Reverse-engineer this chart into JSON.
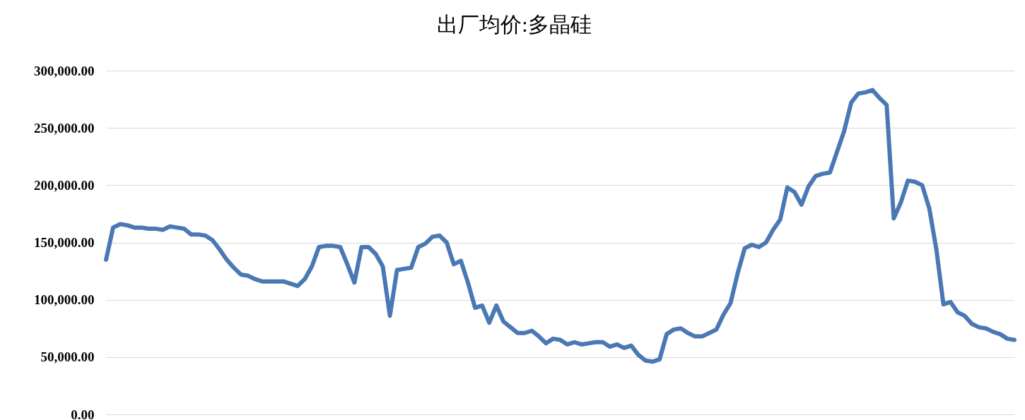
{
  "chart_data": {
    "type": "line",
    "title": "出厂均价:多晶硅",
    "categories": [
      null,
      null,
      null,
      null,
      null,
      null,
      null,
      null,
      null,
      null,
      null,
      null,
      null,
      null,
      null,
      null,
      null,
      null,
      null,
      null,
      null,
      null,
      null,
      null,
      null,
      null,
      null,
      null,
      null,
      null,
      null,
      null,
      null,
      null,
      null,
      null,
      null,
      null,
      null,
      null,
      null,
      null,
      null,
      null,
      null,
      null,
      null,
      null,
      null,
      null,
      null,
      null,
      null,
      null,
      null,
      null,
      null,
      null,
      null,
      null,
      null,
      null,
      null,
      null,
      null,
      null,
      null,
      null,
      null,
      null,
      null,
      null,
      null,
      null,
      null,
      null,
      null,
      null,
      null,
      null,
      null,
      null,
      null,
      null,
      null,
      null,
      null,
      null,
      null,
      null,
      null,
      null,
      null,
      null,
      null,
      null,
      null,
      null,
      null,
      null,
      null,
      null,
      null,
      null,
      null,
      null,
      null,
      null,
      null,
      null,
      null,
      null,
      null,
      null,
      null,
      null,
      null,
      null,
      null,
      null,
      null,
      null,
      null,
      null,
      null,
      null,
      null,
      null,
      null
    ],
    "series": [
      {
        "color": "#4a78b4",
        "values": [
          135000,
          163000,
          166000,
          165000,
          163000,
          163000,
          162000,
          162000,
          161000,
          164000,
          163000,
          162000,
          157000,
          157000,
          156000,
          152000,
          144000,
          135000,
          128000,
          122000,
          121000,
          118000,
          116000,
          116000,
          116000,
          116000,
          114000,
          112000,
          118000,
          129000,
          146000,
          147000,
          147000,
          146000,
          131000,
          115000,
          146000,
          146000,
          140000,
          129000,
          86000,
          126000,
          127000,
          128000,
          146000,
          149000,
          155000,
          156000,
          150000,
          131000,
          134000,
          115000,
          93000,
          95000,
          80000,
          95000,
          81000,
          76000,
          71000,
          71000,
          73000,
          68000,
          62000,
          66000,
          65000,
          61000,
          63000,
          61000,
          62000,
          63000,
          63000,
          59000,
          61000,
          58000,
          60000,
          52000,
          47000,
          46000,
          48000,
          70000,
          74000,
          75000,
          71000,
          68000,
          68000,
          71000,
          74000,
          87000,
          97000,
          123000,
          145000,
          148000,
          146000,
          150000,
          161000,
          170000,
          198000,
          194000,
          183000,
          199000,
          208000,
          210000,
          211000,
          229000,
          247000,
          272000,
          280000,
          281000,
          283000,
          276000,
          270000,
          171000,
          185000,
          204000,
          203000,
          200000,
          180000,
          144000,
          96000,
          98000,
          89000,
          86000,
          79000,
          76000,
          75000,
          72000,
          70000,
          66000,
          65000
        ]
      }
    ],
    "ylim": [
      0,
      300000
    ],
    "yticks": [
      {
        "value": 0,
        "label": "0.00"
      },
      {
        "value": 50000,
        "label": "50,000.00"
      },
      {
        "value": 100000,
        "label": "100,000.00"
      },
      {
        "value": 150000,
        "label": "150,000.00"
      },
      {
        "value": 200000,
        "label": "200,000.00"
      },
      {
        "value": 250000,
        "label": "250,000.00"
      },
      {
        "value": 300000,
        "label": "300,000.00"
      }
    ],
    "grid": "y",
    "tick_labels": "y",
    "line_style": "solid"
  }
}
